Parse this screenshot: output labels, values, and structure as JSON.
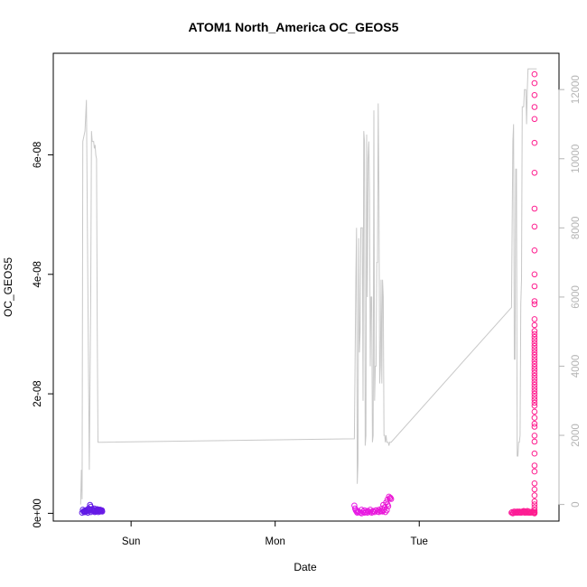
{
  "chart_data": {
    "type": "scatter",
    "title": "ATOM1 North_America OC_GEOS5",
    "xlabel": "Date",
    "ylabel": "OC_GEOS5",
    "y_ticks": [
      {
        "value": 0,
        "label": "0e+00"
      },
      {
        "value": 2e-08,
        "label": "2e-08"
      },
      {
        "value": 4e-08,
        "label": "4e-08"
      },
      {
        "value": 6e-08,
        "label": "6e-08"
      }
    ],
    "ylim": [
      -1.3e-09,
      7.7e-08
    ],
    "x_ticks": [
      {
        "value": 1,
        "label": "Sun"
      },
      {
        "value": 2,
        "label": "Mon"
      },
      {
        "value": 3,
        "label": "Tue"
      }
    ],
    "xlim": [
      0.46,
      3.97
    ],
    "y2_ticks": [
      {
        "value": 0,
        "label": "0"
      },
      {
        "value": 2000,
        "label": "2000"
      },
      {
        "value": 4000,
        "label": "4000"
      },
      {
        "value": 6000,
        "label": "6000"
      },
      {
        "value": 8000,
        "label": "8000"
      },
      {
        "value": 10000,
        "label": "10000"
      },
      {
        "value": 12000,
        "label": "12000"
      }
    ],
    "y2lim": [
      -480,
      13050
    ],
    "grid": false,
    "colors": {
      "altitude_line": "#c8c8c8",
      "marker_start": "#5a1ae6",
      "marker_mid": "#e619e6",
      "marker_end": "#ff1e8c"
    },
    "altitude_line": {
      "x": [
        0.65,
        0.655,
        0.66,
        0.665,
        0.68,
        0.69,
        0.7,
        0.71,
        0.72,
        0.725,
        0.73,
        0.735,
        0.74,
        0.745,
        0.75,
        0.755,
        0.76,
        0.765,
        0.77,
        0.775,
        0.78,
        0.785,
        0.79,
        0.8,
        2.55,
        2.56,
        2.565,
        2.57,
        2.575,
        2.58,
        2.585,
        2.59,
        2.595,
        2.6,
        2.605,
        2.61,
        2.615,
        2.62,
        2.625,
        2.63,
        2.635,
        2.64,
        2.645,
        2.65,
        2.655,
        2.66,
        2.665,
        2.67,
        2.675,
        2.68,
        2.685,
        2.69,
        2.695,
        2.7,
        2.705,
        2.71,
        2.715,
        2.72,
        2.725,
        2.73,
        2.735,
        2.74,
        2.745,
        2.75,
        2.755,
        2.76,
        2.765,
        2.77,
        2.775,
        2.78,
        2.785,
        2.79,
        2.795,
        2.8,
        2.805,
        3.64,
        3.645,
        3.65,
        3.655,
        3.66,
        3.665,
        3.67,
        3.675,
        3.68,
        3.685,
        3.69,
        3.695,
        3.7,
        3.705,
        3.71,
        3.715,
        3.72,
        3.725,
        3.73,
        3.735,
        3.74,
        3.745,
        3.75,
        3.755,
        3.76,
        3.765,
        3.77,
        3.775,
        3.78,
        3.785,
        3.79,
        3.8,
        3.815
      ],
      "y": [
        0,
        1000,
        150,
        10500,
        10800,
        11700,
        6200,
        1000,
        6200,
        10800,
        10500,
        10500,
        10500,
        10300,
        10400,
        10100,
        10000,
        5000,
        1800,
        1800,
        1800,
        1800,
        1800,
        1800,
        1900,
        6500,
        8000,
        600,
        1200,
        7700,
        4400,
        5000,
        8000,
        8000,
        8000,
        3000,
        10800,
        10500,
        1700,
        2000,
        10700,
        6000,
        10000,
        10500,
        9000,
        4000,
        6000,
        6000,
        1800,
        2000,
        11400,
        3000,
        4000,
        4000,
        7000,
        7000,
        11600,
        9000,
        3500,
        4000,
        6500,
        3500,
        6500,
        6000,
        2000,
        2000,
        1800,
        2000,
        1800,
        1800,
        1800,
        1700,
        1800,
        1800,
        1800,
        5700,
        8000,
        10500,
        11000,
        4200,
        4200,
        9700,
        9700,
        1400,
        1400,
        1800,
        1800,
        2000,
        5800,
        6500,
        11500,
        11500,
        11500,
        12000,
        12000,
        12000,
        11000,
        12000,
        12600,
        12600,
        12600,
        12600,
        12600,
        12600,
        12600,
        12600,
        12600,
        12600
      ]
    },
    "series": [
      {
        "x": [
          0.66,
          0.67,
          0.675,
          0.68,
          0.685,
          0.69,
          0.695,
          0.7,
          0.705,
          0.71,
          0.715,
          0.72,
          0.725,
          0.73,
          0.735,
          0.74,
          0.745,
          0.75,
          0.755,
          0.76,
          0.765,
          0.77,
          0.775,
          0.78,
          0.785,
          0.79,
          0.795,
          0.8,
          0.665,
          0.675,
          0.685,
          0.7,
          0.712,
          0.72,
          0.735,
          0.748,
          0.76,
          0.772,
          0.786,
          0.798
        ],
        "y": [
          1e-10,
          3e-10,
          4e-10,
          2e-10,
          5e-10,
          3e-10,
          6e-10,
          4e-10,
          8e-10,
          6e-10,
          1.4e-09,
          1.1e-09,
          5e-10,
          7e-10,
          4e-10,
          6e-10,
          8e-10,
          5e-10,
          3e-10,
          6e-10,
          7e-10,
          4e-10,
          5e-10,
          6e-10,
          3e-10,
          5e-10,
          4e-10,
          3e-10,
          6e-10,
          2e-10,
          4e-10,
          1e-10,
          5e-10,
          2e-10,
          4e-10,
          2e-10,
          4e-10,
          2e-10,
          6e-10,
          5e-10
        ]
      },
      {
        "x": [
          2.55,
          2.555,
          2.56,
          2.565,
          2.57,
          2.575,
          2.58,
          2.59,
          2.6,
          2.61,
          2.62,
          2.63,
          2.64,
          2.65,
          2.66,
          2.67,
          2.68,
          2.69,
          2.7,
          2.71,
          2.72,
          2.73,
          2.74,
          2.745,
          2.75,
          2.755,
          2.76,
          2.765,
          2.77,
          2.775,
          2.78,
          2.785,
          2.79,
          2.795,
          2.8,
          2.805,
          2.6,
          2.62,
          2.64,
          2.66,
          2.68,
          2.7,
          2.72,
          2.74,
          2.76,
          2.78
        ],
        "y": [
          1.3e-09,
          8e-10,
          5e-10,
          3e-10,
          1e-10,
          4e-10,
          2e-10,
          1e-10,
          0,
          3e-10,
          1e-10,
          2e-10,
          1e-10,
          3e-10,
          2e-10,
          1e-10,
          4e-10,
          2e-10,
          5e-10,
          3e-10,
          6e-10,
          4e-10,
          8e-10,
          3e-10,
          1.4e-09,
          6e-10,
          1e-09,
          2e-10,
          1.8e-09,
          5e-10,
          2.3e-09,
          1.2e-09,
          2.8e-09,
          2.5e-09,
          2.6e-09,
          2.4e-09,
          6e-10,
          5e-10,
          4e-10,
          6e-10,
          3e-10,
          5e-10,
          2e-10,
          4e-10,
          1e-09,
          1.5e-09
        ]
      },
      {
        "x": [
          3.64,
          3.645,
          3.65,
          3.655,
          3.66,
          3.665,
          3.67,
          3.675,
          3.68,
          3.685,
          3.69,
          3.695,
          3.7,
          3.705,
          3.71,
          3.715,
          3.72,
          3.725,
          3.73,
          3.735,
          3.74,
          3.745,
          3.75,
          3.755,
          3.76,
          3.765,
          3.77,
          3.775,
          3.78,
          3.785,
          3.79,
          3.795,
          3.8
        ],
        "y": [
          1e-10,
          2e-10,
          0,
          1e-10,
          3e-10,
          1e-10,
          2e-10,
          1e-10,
          3e-10,
          1e-10,
          2e-10,
          3e-10,
          1e-10,
          2e-10,
          1e-10,
          3e-10,
          2e-10,
          4e-10,
          1e-10,
          3e-10,
          1e-10,
          2e-10,
          4e-10,
          1e-10,
          3e-10,
          1e-10,
          2e-10,
          1e-10,
          2e-10,
          3e-10,
          1e-10,
          2e-10,
          1e-10
        ]
      },
      {
        "x": [
          3.8,
          3.8,
          3.8,
          3.8,
          3.8,
          3.8,
          3.8,
          3.8,
          3.8,
          3.8,
          3.8,
          3.8,
          3.8,
          3.8,
          3.8,
          3.8,
          3.8,
          3.8,
          3.8,
          3.8,
          3.8,
          3.8,
          3.8,
          3.8,
          3.8,
          3.8,
          3.8,
          3.8,
          3.8,
          3.8,
          3.8,
          3.8,
          3.8,
          3.8,
          3.8,
          3.8,
          3.8,
          3.8,
          3.8,
          3.8,
          3.8,
          3.8,
          3.8,
          3.8,
          3.8,
          3.8,
          3.8,
          3.8,
          3.8,
          3.8,
          3.8,
          3.8,
          3.8,
          3.8,
          3.8,
          3.8,
          3.8,
          3.8,
          3.8,
          3.8
        ],
        "y": [
          7.35e-08,
          7.2e-08,
          7e-08,
          6.8e-08,
          6.6e-08,
          6.2e-08,
          5.7e-08,
          5.1e-08,
          4.8e-08,
          4.4e-08,
          4e-08,
          3.8e-08,
          3.55e-08,
          3.5e-08,
          3.25e-08,
          3.15e-08,
          3.05e-08,
          3e-08,
          2.95e-08,
          2.9e-08,
          2.85e-08,
          2.8e-08,
          2.75e-08,
          2.7e-08,
          2.65e-08,
          2.6e-08,
          2.55e-08,
          2.5e-08,
          2.45e-08,
          2.4e-08,
          2.35e-08,
          2.3e-08,
          2.25e-08,
          2.2e-08,
          2.15e-08,
          2.1e-08,
          2.05e-08,
          2e-08,
          1.95e-08,
          1.9e-08,
          1.85e-08,
          1.8e-08,
          1.7e-08,
          1.6e-08,
          1.5e-08,
          1.45e-08,
          1.3e-08,
          1.2e-08,
          1e-08,
          8e-09,
          7e-09,
          5e-09,
          4e-09,
          3e-09,
          2e-09,
          1.5e-09,
          1e-09,
          5e-10,
          2e-10,
          0
        ]
      }
    ]
  }
}
